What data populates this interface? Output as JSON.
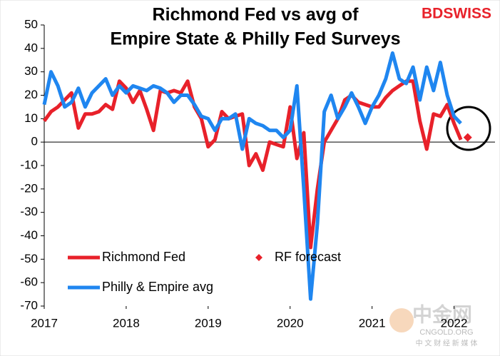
{
  "brand": "BDSWISS",
  "watermark": [
    "中金网",
    "CNGOLD.ORG",
    "中 文 财 经 新 媒 体"
  ],
  "chart_data": {
    "type": "line",
    "title": [
      "Richmond Fed vs avg of",
      "Empire State & Philly Fed Surveys"
    ],
    "x": [
      2017,
      2017.083,
      2017.167,
      2017.25,
      2017.333,
      2017.417,
      2017.5,
      2017.583,
      2017.667,
      2017.75,
      2017.833,
      2017.917,
      2018,
      2018.083,
      2018.167,
      2018.25,
      2018.333,
      2018.417,
      2018.5,
      2018.583,
      2018.667,
      2018.75,
      2018.833,
      2018.917,
      2019,
      2019.083,
      2019.167,
      2019.25,
      2019.333,
      2019.417,
      2019.5,
      2019.583,
      2019.667,
      2019.75,
      2019.833,
      2019.917,
      2020,
      2020.083,
      2020.167,
      2020.25,
      2020.333,
      2020.417,
      2020.5,
      2020.583,
      2020.667,
      2020.75,
      2020.833,
      2020.917,
      2021,
      2021.083,
      2021.167,
      2021.25,
      2021.333,
      2021.417,
      2021.5,
      2021.583,
      2021.667,
      2021.75,
      2021.833,
      2021.917,
      2022,
      2022.083
    ],
    "series": [
      {
        "name": "Richmond Fed",
        "color": "#e8212a",
        "style": "line",
        "values": [
          9,
          13,
          15,
          18,
          21,
          6,
          12,
          12,
          13,
          16,
          14,
          26,
          23,
          17,
          22,
          14,
          5,
          22,
          21,
          22,
          21,
          26,
          15,
          10,
          -2,
          1,
          13,
          10,
          11,
          12,
          -10,
          -5,
          -12,
          0,
          -1,
          -2,
          15,
          -7,
          4,
          -45,
          -20,
          0,
          5,
          10,
          18,
          20,
          17,
          16,
          15,
          15,
          19,
          22,
          24,
          26,
          26,
          9,
          -3,
          12,
          11,
          16,
          8,
          1
        ]
      },
      {
        "name": "RF forecast",
        "color": "#e8212a",
        "style": "marker",
        "x": [
          2022.167
        ],
        "values": [
          2
        ]
      },
      {
        "name": "Philly & Empire avg",
        "color": "#1f86f0",
        "style": "line",
        "values": [
          16,
          30,
          24,
          15,
          17,
          23,
          15,
          21,
          24,
          27,
          20,
          24,
          21,
          24,
          23,
          22,
          24,
          23,
          21,
          17,
          20,
          20,
          16,
          11,
          10,
          5,
          10,
          10,
          12,
          -3,
          10,
          8,
          7,
          5,
          5,
          2,
          5,
          24,
          -20,
          -67,
          -35,
          13,
          20,
          10,
          15,
          21,
          15,
          8,
          15,
          20,
          27,
          38,
          27,
          25,
          32,
          18,
          32,
          22,
          34,
          20,
          11,
          8
        ]
      }
    ],
    "xlim": [
      2017,
      2022.5
    ],
    "xticks": [
      2017,
      2018,
      2019,
      2020,
      2021,
      2022
    ],
    "ylim": [
      -70,
      50
    ],
    "yticks": [
      -70,
      -60,
      -50,
      -40,
      -30,
      -20,
      -10,
      0,
      10,
      20,
      30,
      40,
      50
    ],
    "grid": false
  }
}
